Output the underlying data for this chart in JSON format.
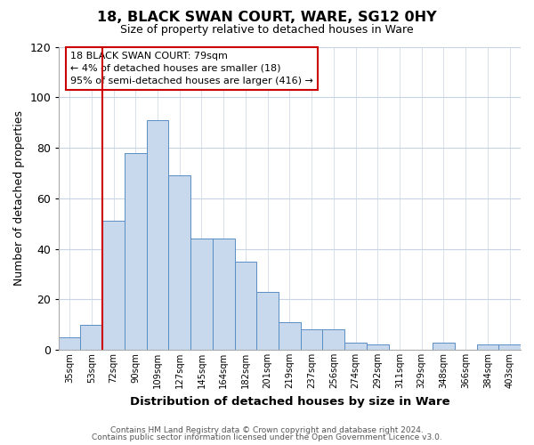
{
  "title": "18, BLACK SWAN COURT, WARE, SG12 0HY",
  "subtitle": "Size of property relative to detached houses in Ware",
  "xlabel": "Distribution of detached houses by size in Ware",
  "ylabel": "Number of detached properties",
  "bin_labels": [
    "35sqm",
    "53sqm",
    "72sqm",
    "90sqm",
    "109sqm",
    "127sqm",
    "145sqm",
    "164sqm",
    "182sqm",
    "201sqm",
    "219sqm",
    "237sqm",
    "256sqm",
    "274sqm",
    "292sqm",
    "311sqm",
    "329sqm",
    "348sqm",
    "366sqm",
    "384sqm",
    "403sqm"
  ],
  "bar_heights": [
    5,
    10,
    51,
    78,
    91,
    69,
    44,
    44,
    35,
    23,
    11,
    8,
    8,
    3,
    2,
    0,
    0,
    3,
    0,
    2,
    2
  ],
  "bar_color": "#c9d9ed",
  "bar_edge_color": "#5b8ec4",
  "vline_color": "#cc0000",
  "ylim": [
    0,
    120
  ],
  "yticks": [
    0,
    20,
    40,
    60,
    80,
    100,
    120
  ],
  "annotation_title": "18 BLACK SWAN COURT: 79sqm",
  "annotation_line1": "← 4% of detached houses are smaller (18)",
  "annotation_line2": "95% of semi-detached houses are larger (416) →",
  "annotation_box_color": "#cc0000",
  "footer_line1": "Contains HM Land Registry data © Crown copyright and database right 2024.",
  "footer_line2": "Contains public sector information licensed under the Open Government Licence v3.0.",
  "background_color": "#ffffff",
  "grid_color": "#c8d4e3"
}
